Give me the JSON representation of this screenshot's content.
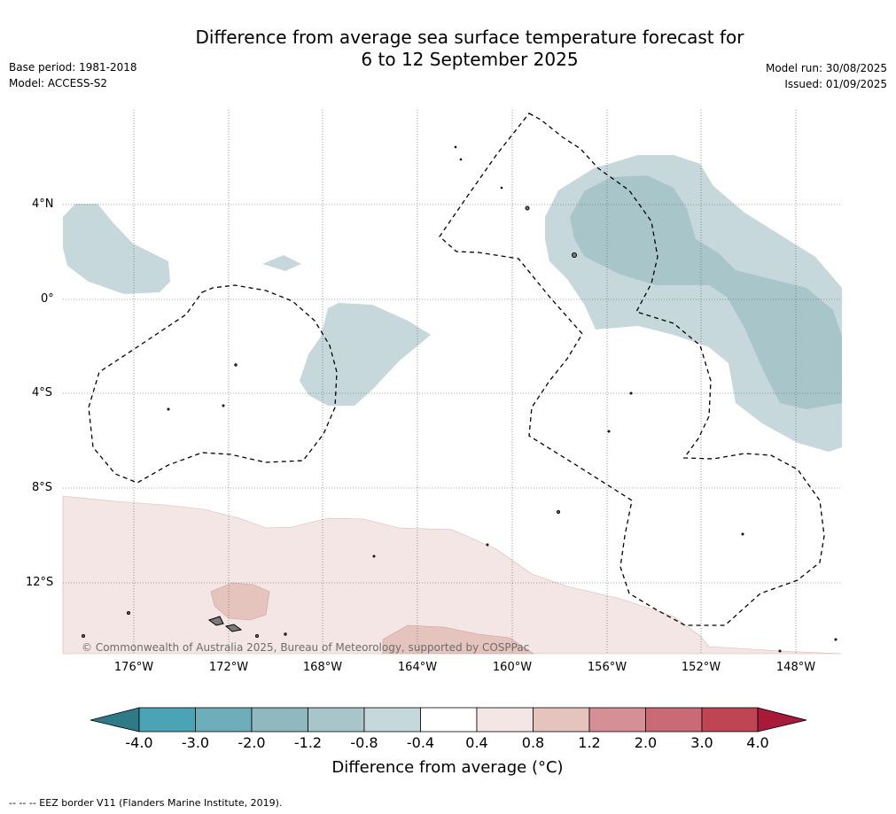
{
  "header": {
    "title_line1": "Difference from average sea surface temperature forecast for",
    "title_line2": "6 to 12 September 2025",
    "base_period": "Base period: 1981-2018",
    "model": "Model: ACCESS-S2",
    "model_run": "Model run: 30/08/2025",
    "issued": "Issued: 01/09/2025"
  },
  "map": {
    "lat_labels": [
      "4°N",
      "0°",
      "4°S",
      "8°S",
      "12°S"
    ],
    "lon_labels": [
      "176°W",
      "172°W",
      "168°W",
      "164°W",
      "160°W",
      "156°W",
      "152°W",
      "148°W"
    ],
    "credit": "© Commonwealth of Australia 2025, Bureau of Meteorology, supported by COSPPac"
  },
  "colorbar": {
    "ticks": [
      "-4.0",
      "-3.0",
      "-2.0",
      "-1.2",
      "-0.8",
      "-0.4",
      "0.4",
      "0.8",
      "1.2",
      "2.0",
      "3.0",
      "4.0"
    ],
    "colors": [
      "#2f7a87",
      "#4aa4b5",
      "#6eaebb",
      "#8fb8bf",
      "#a8c6ca",
      "#c6d8dc",
      "#ffffff",
      "#f3e6e4",
      "#e6c4be",
      "#d68f96",
      "#c96a74",
      "#bf4555",
      "#a8193a"
    ],
    "label": "Difference from average (°C)"
  },
  "footnote": "-- -- -- EEZ border V11 (Flanders Marine Institute, 2019)."
}
